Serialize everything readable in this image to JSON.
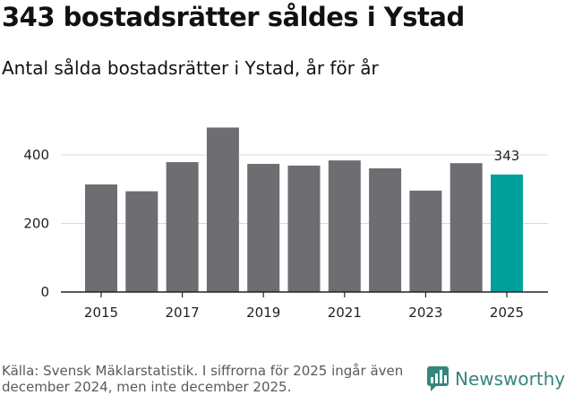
{
  "title": "343 bostadsrätter såldes i Ystad",
  "subtitle": "Antal sålda bostadsrätter i Ystad, år för år",
  "footer": {
    "source": "Källa: Svensk Mäklarstatistik. I siffrorna för 2025 ingår även december 2024, men inte december 2025.",
    "brand": "Newsworthy"
  },
  "colors": {
    "bar": "#6e6d72",
    "highlight": "#00a19a",
    "brand": "#35867c"
  },
  "chart_data": {
    "type": "bar",
    "categories": [
      "2015",
      "2016",
      "2017",
      "2018",
      "2019",
      "2020",
      "2021",
      "2022",
      "2023",
      "2024",
      "2025"
    ],
    "values": [
      314,
      294,
      379,
      480,
      374,
      369,
      384,
      361,
      296,
      376,
      343
    ],
    "highlight_index": 10,
    "highlight_label": "343",
    "y_ticks": [
      "0",
      "200",
      "400"
    ],
    "x_tick_labels": [
      "2015",
      "2017",
      "2019",
      "2021",
      "2023",
      "2025"
    ],
    "ylim": [
      0,
      500
    ],
    "title": "343 bostadsrätter såldes i Ystad",
    "xlabel": "",
    "ylabel": "",
    "grid": true
  }
}
